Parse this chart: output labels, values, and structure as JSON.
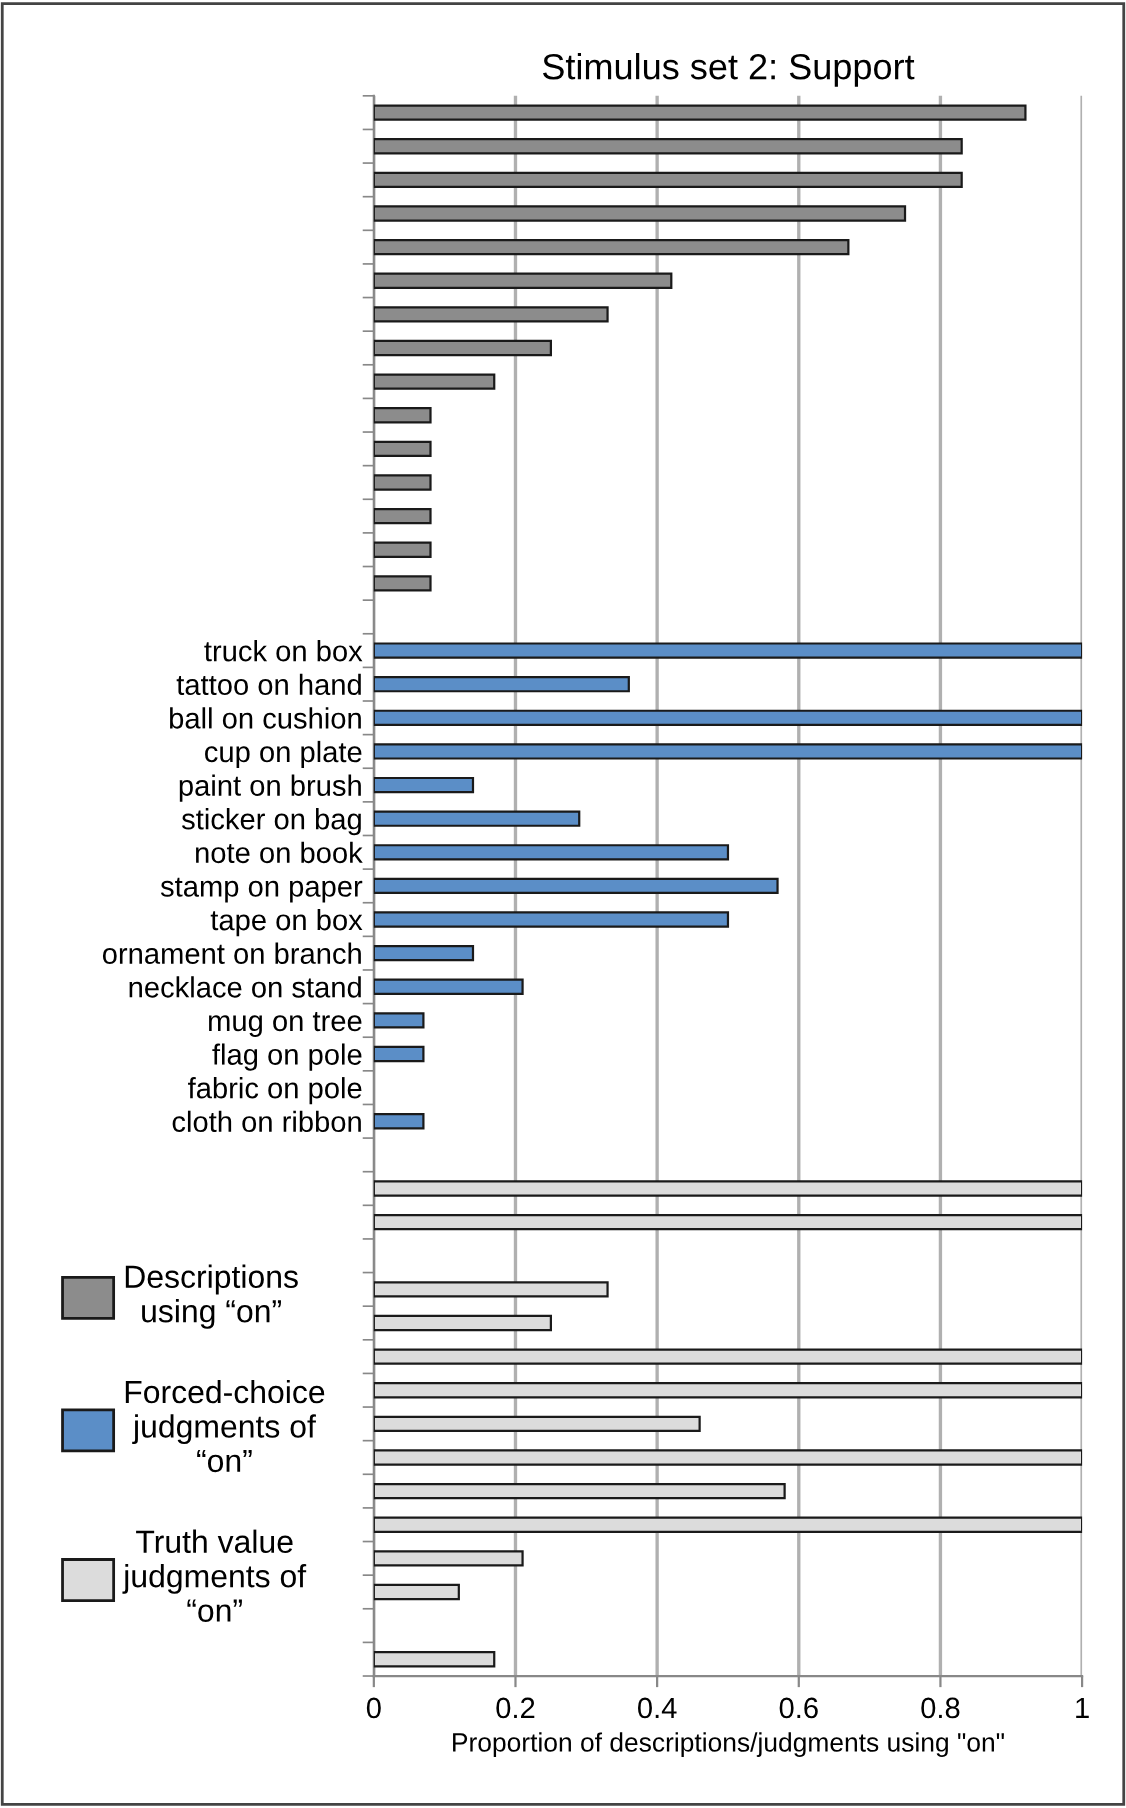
{
  "chart_data": {
    "type": "bar",
    "orientation": "horizontal",
    "title": "Stimulus set 2: Support",
    "xlabel": "Proportion of descriptions/judgments using \"on\"",
    "categories": [
      null,
      null,
      null,
      null,
      null,
      null,
      null,
      null,
      null,
      null,
      null,
      null,
      null,
      null,
      null,
      null,
      "truck on box",
      "tattoo on hand",
      "ball on cushion",
      "cup on plate",
      "paint on brush",
      "sticker on bag",
      "note on book",
      "stamp on paper",
      "tape on box",
      "ornament on branch",
      "necklace on stand",
      "mug on tree",
      "flag on pole",
      "fabric on pole",
      "cloth on ribbon",
      null,
      null,
      null,
      null,
      null,
      null,
      null,
      null,
      null,
      null,
      null,
      null,
      null,
      null,
      null,
      null
    ],
    "series": [
      {
        "name": "Descriptions\nusing “on”",
        "color": "#8c8c8c",
        "values": [
          0.92,
          0.83,
          0.83,
          0.75,
          0.67,
          0.42,
          0.33,
          0.25,
          0.17,
          0.08,
          0.08,
          0.08,
          0.08,
          0.08,
          0.08,
          null,
          null,
          null,
          null,
          null,
          null,
          null,
          null,
          null,
          null,
          null,
          null,
          null,
          null,
          null,
          null,
          null,
          null,
          null,
          null,
          null,
          null,
          null,
          null,
          null,
          null,
          null,
          null,
          null,
          null,
          null,
          null
        ]
      },
      {
        "name": "Forced-choice\njudgments of\n“on”",
        "color": "#5b8ec7",
        "values": [
          null,
          null,
          null,
          null,
          null,
          null,
          null,
          null,
          null,
          null,
          null,
          null,
          null,
          null,
          null,
          null,
          1,
          0.36,
          1,
          1,
          0.14,
          0.29,
          0.5,
          0.57,
          0.5,
          0.14,
          0.21,
          0.07,
          0.07,
          null,
          0.07,
          null,
          null,
          null,
          null,
          null,
          null,
          null,
          null,
          null,
          null,
          null,
          null,
          null,
          null,
          null,
          null
        ]
      },
      {
        "name": "Truth value\njudgments of\n“on”",
        "color": "#dcdcdc",
        "values": [
          null,
          null,
          null,
          null,
          null,
          null,
          null,
          null,
          null,
          null,
          null,
          null,
          null,
          null,
          null,
          null,
          null,
          null,
          null,
          null,
          null,
          null,
          null,
          null,
          null,
          null,
          null,
          null,
          null,
          null,
          null,
          null,
          1,
          1,
          null,
          0.33,
          0.25,
          1,
          1,
          0.46,
          1,
          0.58,
          1,
          0.21,
          0.12,
          null,
          0.17
        ]
      }
    ],
    "xlim": [
      0,
      1
    ],
    "xticks": [
      0,
      0.2,
      0.4,
      0.6,
      0.8,
      1
    ],
    "grid": "x",
    "legend": "left"
  }
}
